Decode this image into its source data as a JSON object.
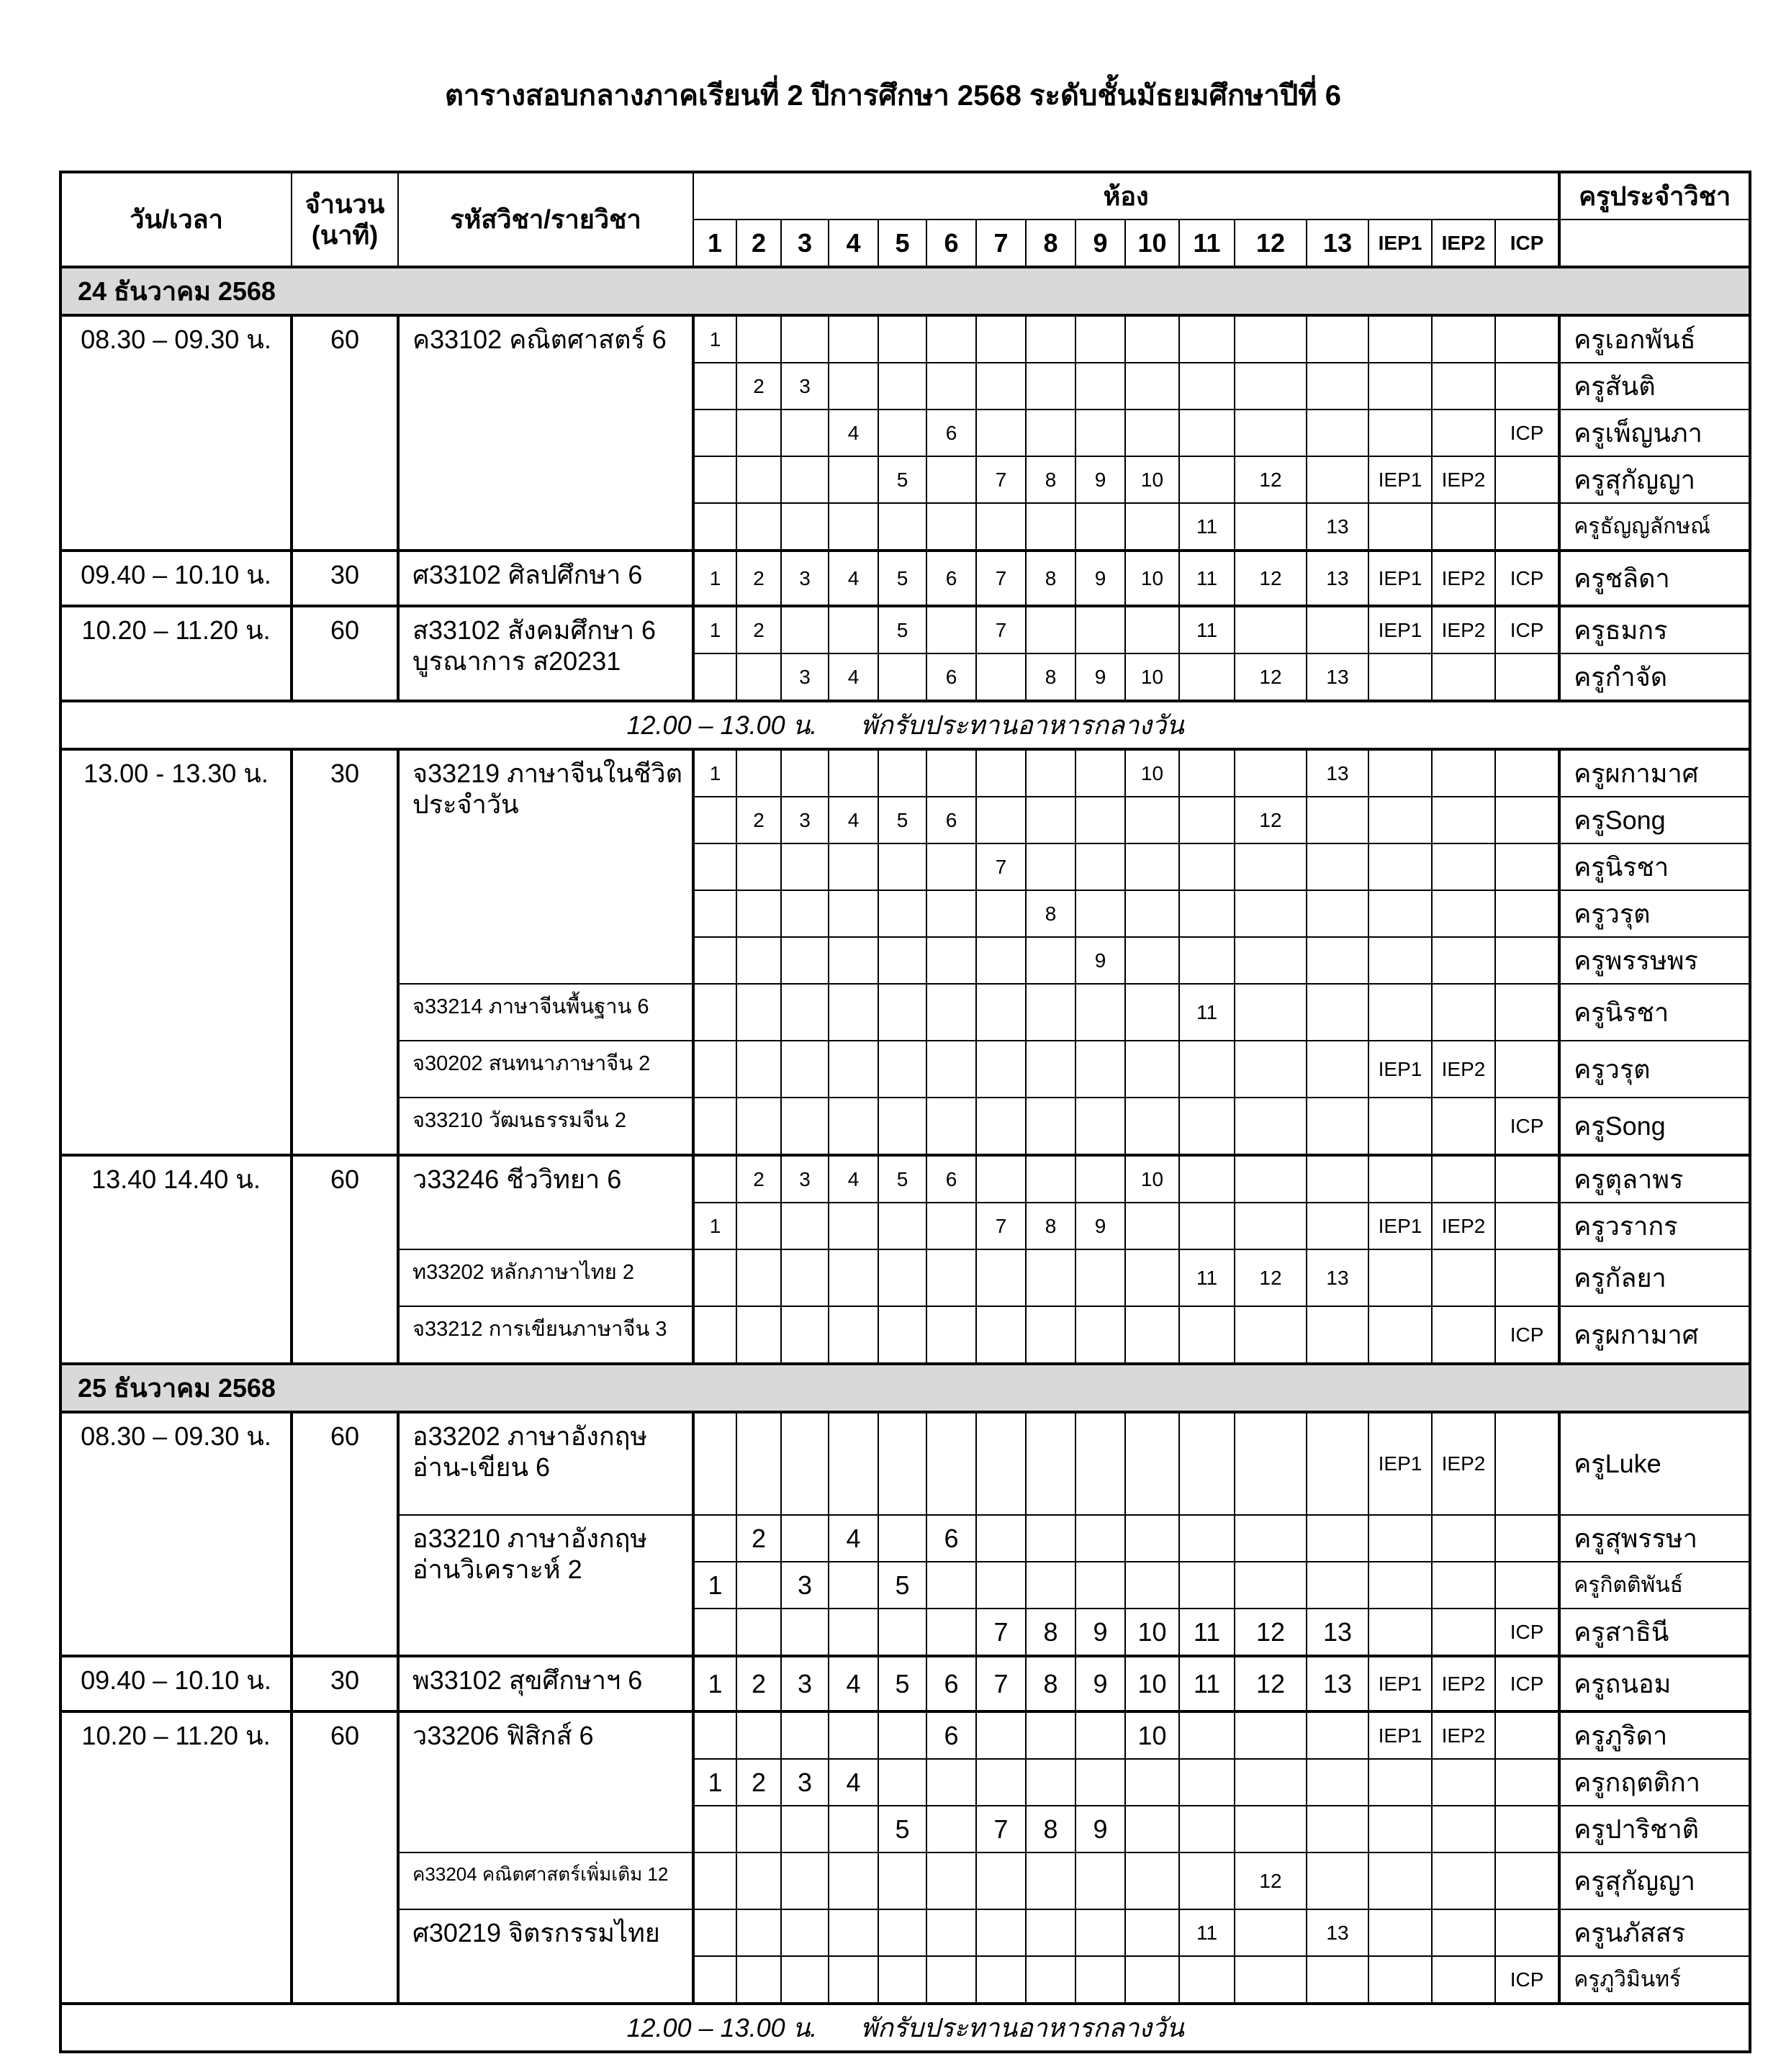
{
  "title": "ตารางสอบกลางภาคเรียนที่ 2 ปีการศึกษา 2568 ระดับชั้นมัธยมศึกษาปีที่ 6",
  "header": {
    "datetime": "วัน/เวลา",
    "minutes": "จำนวน (นาที)",
    "subject": "รหัสวิชา/รายวิชา",
    "rooms_group": "ห้อง",
    "teacher": "ครูประจำวิชา",
    "rooms": [
      "1",
      "2",
      "3",
      "4",
      "5",
      "6",
      "7",
      "8",
      "9",
      "10",
      "11",
      "12",
      "13",
      "IEP1",
      "IEP2",
      "ICP"
    ]
  },
  "sections": [
    {
      "type": "date",
      "label": "24 ธันวาคม 2568"
    },
    {
      "type": "slot",
      "time": "08.30 – 09.30 น.",
      "minutes": "60",
      "subjects": [
        {
          "name": "ค33102 คณิตศาสตร์ 6",
          "rows": [
            {
              "rooms": [
                "1"
              ],
              "teacher": "ครูเอกพันธ์"
            },
            {
              "rooms": [
                "2",
                "3"
              ],
              "teacher": "ครูสันติ"
            },
            {
              "rooms": [
                "4",
                "6",
                "ICP"
              ],
              "teacher": "ครูเพ็ญนภา"
            },
            {
              "rooms": [
                "5",
                "7",
                "8",
                "9",
                "10",
                "12",
                "IEP1",
                "IEP2"
              ],
              "teacher": "ครูสุกัญญา"
            },
            {
              "rooms": [
                "11",
                "13"
              ],
              "teacher": "ครูธัญญลักษณ์"
            }
          ]
        }
      ]
    },
    {
      "type": "slot",
      "time": "09.40 – 10.10 น.",
      "minutes": "30",
      "subjects": [
        {
          "name": "ศ33102 ศิลปศึกษา 6",
          "rows": [
            {
              "rooms": [
                "1",
                "2",
                "3",
                "4",
                "5",
                "6",
                "7",
                "8",
                "9",
                "10",
                "11",
                "12",
                "13",
                "IEP1",
                "IEP2",
                "ICP"
              ],
              "teacher": "ครูชลิดา"
            }
          ]
        }
      ]
    },
    {
      "type": "slot",
      "time": "10.20 – 11.20 น.",
      "minutes": "60",
      "subjects": [
        {
          "name": "ส33102 สังคมศึกษา 6 บูรณาการ ส20231",
          "rows": [
            {
              "rooms": [
                "1",
                "2",
                "5",
                "7",
                "11",
                "IEP1",
                "IEP2",
                "ICP"
              ],
              "teacher": "ครูธมกร"
            },
            {
              "rooms": [
                "3",
                "4",
                "6",
                "8",
                "9",
                "10",
                "12",
                "13"
              ],
              "teacher": "ครูกำจัด"
            }
          ]
        }
      ]
    },
    {
      "type": "break",
      "time": "12.00 – 13.00 น.",
      "label": "พักรับประทานอาหารกลางวัน"
    },
    {
      "type": "slot",
      "time": "13.00 - 13.30 น.",
      "minutes": "30",
      "subjects": [
        {
          "name": "จ33219 ภาษาจีนในชีวิตประจำวัน",
          "rows": [
            {
              "rooms": [
                "1",
                "10",
                "13"
              ],
              "teacher": "ครูผกามาศ"
            },
            {
              "rooms": [
                "2",
                "3",
                "4",
                "5",
                "6",
                "12"
              ],
              "teacher": "ครูSong"
            },
            {
              "rooms": [
                "7"
              ],
              "teacher": "ครูนิรชา"
            },
            {
              "rooms": [
                "8"
              ],
              "teacher": "ครูวรุต"
            },
            {
              "rooms": [
                "9"
              ],
              "teacher": "ครูพรรษพร"
            }
          ]
        },
        {
          "name": "จ33214 ภาษาจีนพื้นฐาน 6",
          "small": true,
          "rows": [
            {
              "rooms": [
                "11"
              ],
              "teacher": "ครูนิรชา"
            }
          ]
        },
        {
          "name": "จ30202 สนทนาภาษาจีน 2",
          "small": true,
          "rows": [
            {
              "rooms": [
                "IEP1",
                "IEP2"
              ],
              "teacher": "ครูวรุต"
            }
          ]
        },
        {
          "name": "จ33210 วัฒนธรรมจีน 2",
          "small": true,
          "rows": [
            {
              "rooms": [
                "ICP"
              ],
              "teacher": "ครูSong"
            }
          ]
        }
      ]
    },
    {
      "type": "slot",
      "time": "13.40 14.40 น.",
      "minutes": "60",
      "subjects": [
        {
          "name": "ว33246 ชีววิทยา 6",
          "rows": [
            {
              "rooms": [
                "2",
                "3",
                "4",
                "5",
                "6",
                "10"
              ],
              "teacher": "ครูตุลาพร"
            },
            {
              "rooms": [
                "1",
                "7",
                "8",
                "9",
                "IEP1",
                "IEP2"
              ],
              "teacher": "ครูวรากร"
            }
          ]
        },
        {
          "name": "ท33202 หลักภาษาไทย 2",
          "small": true,
          "rows": [
            {
              "rooms": [
                "11",
                "12",
                "13"
              ],
              "teacher": "ครูกัลยา"
            }
          ]
        },
        {
          "name": "จ33212 การเขียนภาษาจีน 3",
          "small": true,
          "rows": [
            {
              "rooms": [
                "ICP"
              ],
              "teacher": "ครูผกามาศ"
            }
          ]
        }
      ]
    },
    {
      "type": "date",
      "label": "25 ธันวาคม 2568"
    },
    {
      "type": "slot",
      "time": "08.30 – 09.30 น.",
      "minutes": "60",
      "subjects": [
        {
          "name": "อ33202 ภาษาอังกฤษ อ่าน-เขียน 6",
          "tall": true,
          "rows": [
            {
              "rooms": [
                "IEP1",
                "IEP2"
              ],
              "teacher": "ครูLuke"
            }
          ]
        },
        {
          "name": "อ33210 ภาษาอังกฤษ อ่านวิเคราะห์ 2",
          "big": true,
          "rows": [
            {
              "rooms": [
                "2",
                "4",
                "6"
              ],
              "teacher": "ครูสุพรรษา"
            },
            {
              "rooms": [
                "1",
                "3",
                "5"
              ],
              "teacher": "ครูกิตติพันธ์"
            },
            {
              "rooms": [
                "7",
                "8",
                "9",
                "10",
                "11",
                "12",
                "13",
                "ICP"
              ],
              "teacher": "ครูสาธินี"
            }
          ]
        }
      ]
    },
    {
      "type": "slot",
      "time": "09.40 – 10.10 น.",
      "minutes": "30",
      "subjects": [
        {
          "name": "พ33102 สุขศึกษาฯ 6",
          "big": true,
          "rows": [
            {
              "rooms": [
                "1",
                "2",
                "3",
                "4",
                "5",
                "6",
                "7",
                "8",
                "9",
                "10",
                "11",
                "12",
                "13",
                "IEP1",
                "IEP2",
                "ICP"
              ],
              "teacher": "ครูถนอม"
            }
          ]
        }
      ]
    },
    {
      "type": "slot",
      "time": "10.20 – 11.20 น.",
      "minutes": "60",
      "subjects": [
        {
          "name": "ว33206 ฟิสิกส์ 6",
          "big": true,
          "rows": [
            {
              "rooms": [
                "6",
                "10",
                "IEP1",
                "IEP2"
              ],
              "teacher": "ครูภูริดา"
            },
            {
              "rooms": [
                "1",
                "2",
                "3",
                "4"
              ],
              "teacher": "ครูกฤตติกา"
            },
            {
              "rooms": [
                "5",
                "7",
                "8",
                "9"
              ],
              "teacher": "ครูปาริชาติ"
            }
          ]
        },
        {
          "name": "ค33204 คณิตศาสตร์เพิ่มเติม 12",
          "xsmall": true,
          "rows": [
            {
              "rooms": [
                "12"
              ],
              "teacher": "ครูสุกัญญา"
            }
          ]
        },
        {
          "name": "ศ30219 จิตรกรรมไทย",
          "rows": [
            {
              "rooms": [
                "11",
                "13"
              ],
              "teacher": "ครูนภัสสร"
            },
            {
              "rooms": [
                "ICP"
              ],
              "teacher": "ครูภูวิมินทร์"
            }
          ]
        }
      ]
    },
    {
      "type": "break",
      "time": "12.00 – 13.00 น.",
      "label": "พักรับประทานอาหารกลางวัน"
    }
  ]
}
